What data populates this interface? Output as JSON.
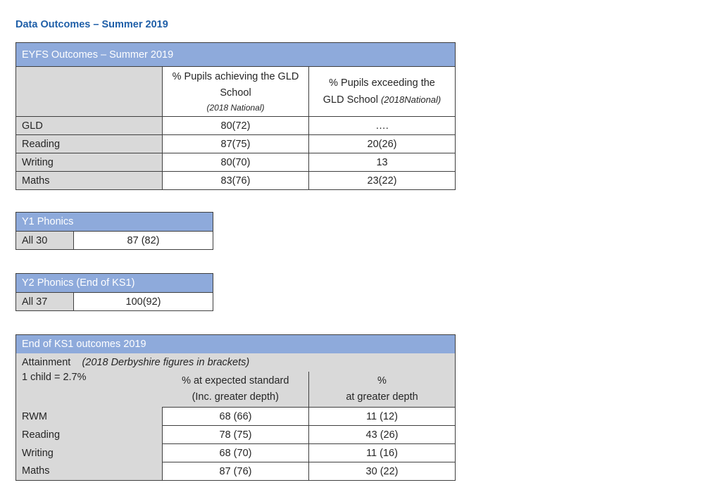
{
  "title": "Data Outcomes – Summer 2019",
  "eyfs": {
    "heading": "EYFS Outcomes – Summer 2019",
    "col1_line1": "% Pupils achieving the GLD",
    "col1_line2": "School",
    "col1_note": "(2018 National)",
    "col2_line1": "% Pupils exceeding the",
    "col2_line2": "GLD School ",
    "col2_note": "(2018National)",
    "rows": [
      {
        "label": "GLD",
        "achieving": "80(72)",
        "exceeding": "…."
      },
      {
        "label": "Reading",
        "achieving": "87(75)",
        "exceeding": "20(26)"
      },
      {
        "label": "Writing",
        "achieving": "80(70)",
        "exceeding": "13"
      },
      {
        "label": "Maths",
        "achieving": "83(76)",
        "exceeding": "23(22)"
      }
    ]
  },
  "y1_phonics": {
    "heading": "Y1 Phonics",
    "label": "All 30",
    "value": "87 (82)"
  },
  "y2_phonics": {
    "heading": "Y2 Phonics (End of KS1)",
    "label": "All 37",
    "value": "100(92)"
  },
  "ks1": {
    "heading": "End of KS1 outcomes 2019",
    "attainment": "Attainment",
    "attainment_note": "(2018 Derbyshire figures in brackets)",
    "child_note": "1 child = 2.7%",
    "col1_line1": "% at expected standard",
    "col1_line2": "(Inc. greater depth)",
    "col2_line1": "%",
    "col2_line2": "at greater depth",
    "rows": [
      {
        "label": "RWM",
        "expected": "68 (66)",
        "greater": "11 (12)"
      },
      {
        "label": "Reading",
        "expected": "78 (75)",
        "greater": "43 (26)"
      },
      {
        "label": "Writing",
        "expected": "68 (70)",
        "greater": "11 (16)"
      },
      {
        "label": "Maths",
        "expected": "87 (76)",
        "greater": "30 (22)"
      }
    ]
  }
}
